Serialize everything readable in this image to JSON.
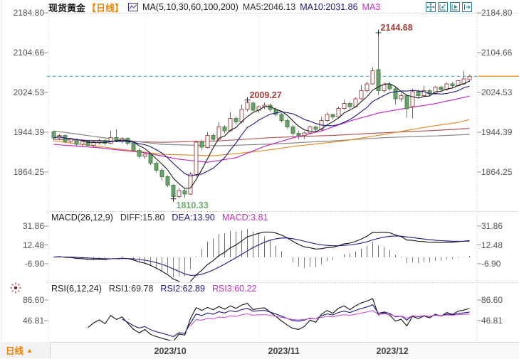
{
  "header": {
    "symbol": "现货黄金",
    "period_tag": "【日线】",
    "ma_settings": "MA(5,10,30,60,100,200)",
    "ma5_label": "MA5:2046.13",
    "ma10_label": "MA10:2031.86",
    "ma30_label_truncated": "MA3"
  },
  "toolbar": {
    "icons": [
      "pan-icon",
      "axis-zoom-icon",
      "axis-play-icon",
      "shift-right-icon"
    ],
    "color": "#2c7c95"
  },
  "macd_panel": {
    "title": "MACD(26,12,9)",
    "diff_label": "DIFF:15.80",
    "dea_label": "DEA:13.90",
    "macd_label": "MACD:3.81"
  },
  "rsi_panel": {
    "title": "RSI(6,12,24)",
    "rsi1_label": "RSI1:69.78",
    "rsi2_label": "RSI2:62.89",
    "rsi3_label": "RSI3:60.22"
  },
  "footer": {
    "period": "日线",
    "arrow": "▲"
  },
  "colors": {
    "up": "#a84848",
    "up_fill": "#ffffff",
    "down": "#4e8a4e",
    "down_fill": "#69a069",
    "ma5": "#1a1a1a",
    "ma10": "#1a1a80",
    "ma30": "#c030c0",
    "ma60": "#e09030",
    "ma100": "#858585",
    "ma200": "#b05858",
    "price_dash_line": "#55a0c8",
    "price_marker_line": "#f0a030",
    "hist_pos": "#b05050",
    "hist_neg": "#5e9c5e",
    "diff": "#111111",
    "dea": "#1a1a80",
    "rsi1": "#111111",
    "rsi2": "#1a1a80",
    "rsi3": "#d055d0",
    "annotation_red": "#a83b36",
    "annotation_green": "#6fae6f",
    "grid": "#c8c8c8",
    "tick": "#999999",
    "sun": "#7a1f1f"
  },
  "chart_data": {
    "type": "candlestick",
    "title": "现货黄金 日线",
    "price_axis_ticks": [
      2184.8,
      2104.66,
      2024.53,
      1944.39,
      1864.25
    ],
    "price_axis_labels": [
      "2184.80",
      "2104.66",
      "2024.53",
      "1944.39",
      "1864.25"
    ],
    "macd_axis_ticks": [
      31.86,
      12.48,
      -6.9
    ],
    "macd_axis_labels": [
      "31.86",
      "12.48",
      "-6.90"
    ],
    "rsi_axis_ticks": [
      86.6,
      46.81
    ],
    "rsi_axis_labels": [
      "86.60",
      "46.81"
    ],
    "x_axis": {
      "labels": [
        "2023/10",
        "2023/11",
        "2023/12"
      ],
      "tick_indices": [
        16,
        36,
        55
      ]
    },
    "last_price": 2057.0,
    "candles": [
      [
        1945,
        1948,
        1928,
        1933
      ],
      [
        1933,
        1941,
        1929,
        1938
      ],
      [
        1938,
        1940,
        1922,
        1926
      ],
      [
        1926,
        1933,
        1921,
        1930
      ],
      [
        1930,
        1932,
        1915,
        1920
      ],
      [
        1920,
        1929,
        1916,
        1926
      ],
      [
        1926,
        1928,
        1914,
        1918
      ],
      [
        1918,
        1927,
        1915,
        1924
      ],
      [
        1924,
        1931,
        1920,
        1928
      ],
      [
        1928,
        1930,
        1918,
        1922
      ],
      [
        1922,
        1948,
        1920,
        1934
      ],
      [
        1934,
        1950,
        1924,
        1928
      ],
      [
        1928,
        1935,
        1922,
        1932
      ],
      [
        1932,
        1934,
        1918,
        1922
      ],
      [
        1922,
        1924,
        1905,
        1908
      ],
      [
        1908,
        1912,
        1892,
        1896
      ],
      [
        1896,
        1903,
        1891,
        1900
      ],
      [
        1900,
        1902,
        1878,
        1882
      ],
      [
        1882,
        1885,
        1863,
        1868
      ],
      [
        1868,
        1872,
        1848,
        1855
      ],
      [
        1855,
        1858,
        1834,
        1838
      ],
      [
        1838,
        1840,
        1810.33,
        1815
      ],
      [
        1815,
        1832,
        1812,
        1827
      ],
      [
        1827,
        1830,
        1813,
        1820
      ],
      [
        1820,
        1864,
        1818,
        1860
      ],
      [
        1858,
        1928,
        1855,
        1924
      ],
      [
        1924,
        1929,
        1908,
        1914
      ],
      [
        1914,
        1945,
        1912,
        1938
      ],
      [
        1938,
        1942,
        1925,
        1930
      ],
      [
        1930,
        1965,
        1928,
        1955
      ],
      [
        1955,
        1958,
        1942,
        1947
      ],
      [
        1947,
        1985,
        1945,
        1972
      ],
      [
        1972,
        1976,
        1960,
        1965
      ],
      [
        1965,
        2000,
        1962,
        1990
      ],
      [
        1990,
        2009.27,
        1986,
        2005
      ],
      [
        2003,
        2006,
        1986,
        1989
      ],
      [
        1989,
        1998,
        1984,
        1996
      ],
      [
        1996,
        2004,
        1991,
        1999
      ],
      [
        1999,
        2002,
        1986,
        1990
      ],
      [
        1990,
        1994,
        1976,
        1980
      ],
      [
        1980,
        1983,
        1964,
        1968
      ],
      [
        1968,
        1972,
        1952,
        1955
      ],
      [
        1955,
        1959,
        1938,
        1942
      ],
      [
        1942,
        1948,
        1930,
        1938
      ],
      [
        1938,
        1946,
        1931,
        1943
      ],
      [
        1943,
        1958,
        1940,
        1955
      ],
      [
        1955,
        1957,
        1944,
        1950
      ],
      [
        1950,
        1975,
        1948,
        1968
      ],
      [
        1968,
        1984,
        1965,
        1980
      ],
      [
        1980,
        1982,
        1970,
        1975
      ],
      [
        1975,
        1996,
        1973,
        1992
      ],
      [
        1992,
        2010,
        1990,
        2002
      ],
      [
        2002,
        2006,
        1992,
        1996
      ],
      [
        1996,
        2015,
        1994,
        2012
      ],
      [
        2012,
        2040,
        2010,
        2028
      ],
      [
        2028,
        2046,
        2024,
        2042
      ],
      [
        2042,
        2075,
        2040,
        2068
      ],
      [
        2070,
        2144.68,
        2020,
        2028
      ],
      [
        2028,
        2044,
        2024,
        2040
      ],
      [
        2040,
        2045,
        2028,
        2032
      ],
      [
        2032,
        2036,
        2000,
        2012
      ],
      [
        2012,
        2022,
        2006,
        2018
      ],
      [
        2018,
        2020,
        1974,
        1992
      ],
      [
        1996,
        2032,
        1972,
        2026
      ],
      [
        2026,
        2030,
        2014,
        2018
      ],
      [
        2018,
        2038,
        2016,
        2028
      ],
      [
        2028,
        2031,
        2018,
        2022
      ],
      [
        2022,
        2038,
        2020,
        2035
      ],
      [
        2035,
        2038,
        2026,
        2030
      ],
      [
        2030,
        2044,
        2028,
        2042
      ],
      [
        2042,
        2045,
        2034,
        2038
      ],
      [
        2038,
        2050,
        2036,
        2048
      ],
      [
        2042,
        2068,
        2040,
        2052
      ],
      [
        2050,
        2060,
        2046,
        2057
      ]
    ],
    "overlays": {
      "ma30": [
        [
          0,
          1920
        ],
        [
          8,
          1913
        ],
        [
          16,
          1903
        ],
        [
          22,
          1890
        ],
        [
          27,
          1884
        ],
        [
          32,
          1893
        ],
        [
          37,
          1916
        ],
        [
          42,
          1933
        ],
        [
          47,
          1947
        ],
        [
          52,
          1967
        ],
        [
          57,
          1983
        ],
        [
          62,
          1993
        ],
        [
          67,
          2002
        ],
        [
          71,
          2012
        ],
        [
          73,
          2017
        ]
      ],
      "ma60": [
        [
          0,
          1927
        ],
        [
          9,
          1914
        ],
        [
          19,
          1900
        ],
        [
          28,
          1897
        ],
        [
          36,
          1906
        ],
        [
          43,
          1917
        ],
        [
          51,
          1927
        ],
        [
          58,
          1940
        ],
        [
          66,
          1956
        ],
        [
          71,
          1964
        ],
        [
          73,
          1970
        ]
      ],
      "ma100": [
        [
          0,
          1947
        ],
        [
          9,
          1933
        ],
        [
          19,
          1920
        ],
        [
          29,
          1917
        ],
        [
          39,
          1921
        ],
        [
          49,
          1927
        ],
        [
          59,
          1934
        ],
        [
          67,
          1937
        ],
        [
          73,
          1940
        ]
      ],
      "ma200": [
        [
          0,
          1930
        ],
        [
          9,
          1927
        ],
        [
          19,
          1924
        ],
        [
          29,
          1927
        ],
        [
          39,
          1934
        ],
        [
          49,
          1938
        ],
        [
          59,
          1944
        ],
        [
          67,
          1948
        ],
        [
          73,
          1952
        ]
      ]
    },
    "annotations": [
      {
        "text": "2144.68",
        "index": 57,
        "price": 2144.68,
        "pos": "above",
        "color": "#a83b36"
      },
      {
        "text": "2009.27",
        "index": 34,
        "price": 2009.27,
        "pos": "above",
        "color": "#a83b36"
      },
      {
        "text": "1810.33",
        "index": 21,
        "price": 1810.33,
        "pos": "below",
        "color": "#6fae6f"
      }
    ]
  }
}
